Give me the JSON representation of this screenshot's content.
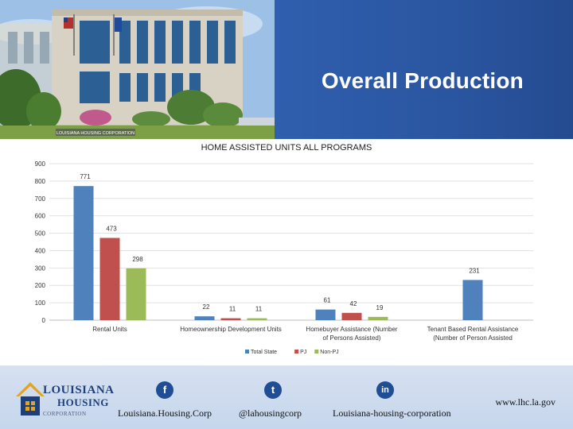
{
  "header": {
    "title": "Overall Production",
    "building_sign": "LOUISIANA HOUSING CORPORATION"
  },
  "colors": {
    "header_blue": "#2a55a0",
    "total_state": "#4f81bd",
    "pj": "#c0504d",
    "non_pj": "#9bbb59",
    "footer_bg": "#cbd9ee"
  },
  "chart_data": {
    "type": "bar",
    "title": "HOME ASSISTED UNITS ALL PROGRAMS",
    "categories": [
      [
        "Rental  Units"
      ],
      [
        "Homeownership Development Units"
      ],
      [
        "Homebuyer Assistance    (Number",
        "of Persons Assisted)"
      ],
      [
        "Tenant Based Rental Assistance",
        "(Number of Person Assisted"
      ]
    ],
    "series": [
      {
        "name": "Total State",
        "color": "#4f81bd",
        "values": [
          771,
          22,
          61,
          231
        ],
        "labels": [
          "771",
          "22",
          "61",
          "231"
        ]
      },
      {
        "name": "PJ",
        "color": "#c0504d",
        "values": [
          473,
          11,
          42,
          null
        ],
        "labels": [
          "473",
          "11",
          "42",
          ""
        ]
      },
      {
        "name": "Non-PJ",
        "color": "#9bbb59",
        "values": [
          298,
          11,
          19,
          null
        ],
        "labels": [
          "298",
          "11",
          "19",
          ""
        ]
      }
    ],
    "ylim": [
      0,
      900
    ],
    "yticks": [
      0,
      100,
      200,
      300,
      400,
      500,
      600,
      700,
      800,
      900
    ],
    "grid": true,
    "legend": "bottom"
  },
  "footer": {
    "logo_line1": "LOUISIANA",
    "logo_line2": "HOUSING",
    "logo_line3": "CORPORATION",
    "facebook_icon": "f",
    "twitter_icon": "t",
    "linkedin_icon": "in",
    "facebook_label": "Louisiana.Housing.Corp",
    "twitter_label": "@lahousingcorp",
    "linkedin_label": "Louisiana-housing-corporation",
    "website": "www.lhc.la.gov"
  }
}
